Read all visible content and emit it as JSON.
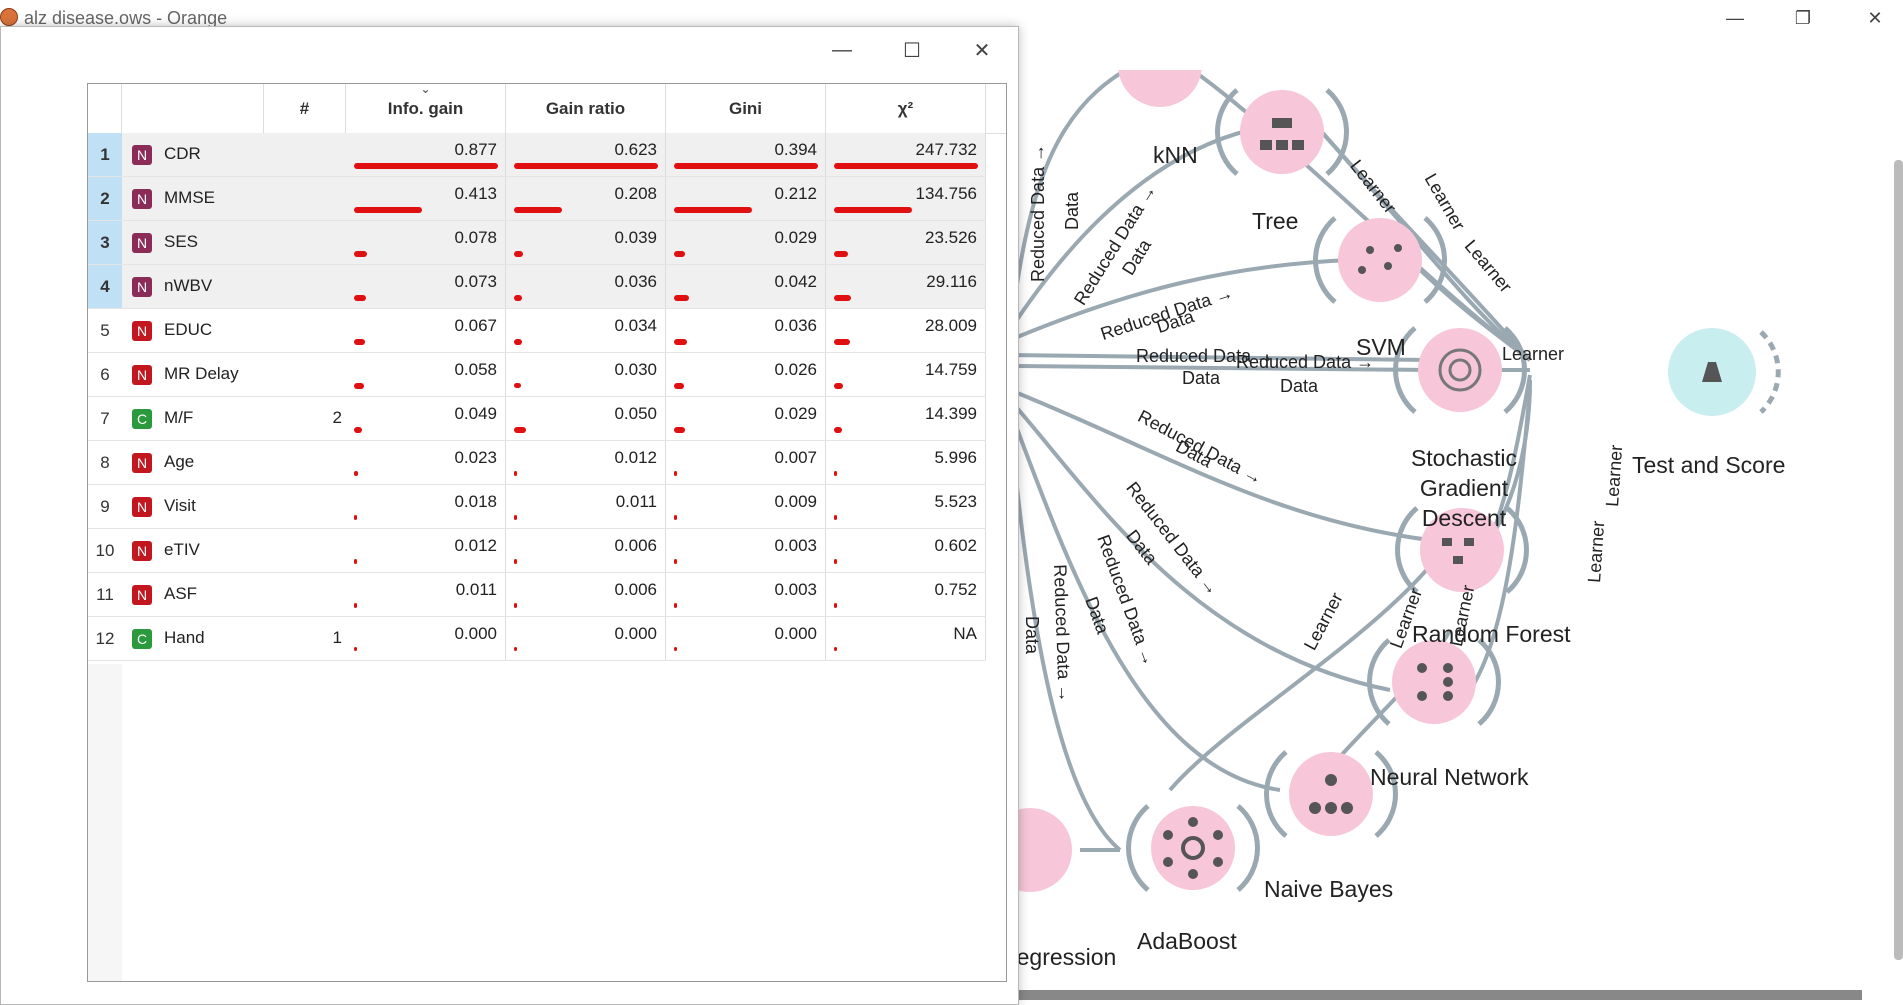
{
  "window": {
    "title": "alz disease.ows - Orange"
  },
  "table": {
    "columns": [
      {
        "label": "#"
      },
      {
        "label": "Info. gain"
      },
      {
        "label": "Gain ratio"
      },
      {
        "label": "Gini"
      },
      {
        "label": "χ²"
      }
    ],
    "rows": [
      {
        "index": "1",
        "type": "N",
        "name": "CDR",
        "count": "",
        "info_gain": "0.877",
        "gain_ratio": "0.623",
        "gini": "0.394",
        "chi2": "247.732",
        "selected": true,
        "bars": [
          1.0,
          1.0,
          1.0,
          1.0
        ]
      },
      {
        "index": "2",
        "type": "N",
        "name": "MMSE",
        "count": "",
        "info_gain": "0.413",
        "gain_ratio": "0.208",
        "gini": "0.212",
        "chi2": "134.756",
        "selected": true,
        "bars": [
          0.47,
          0.33,
          0.54,
          0.54
        ]
      },
      {
        "index": "3",
        "type": "N",
        "name": "SES",
        "count": "",
        "info_gain": "0.078",
        "gain_ratio": "0.039",
        "gini": "0.029",
        "chi2": "23.526",
        "selected": true,
        "bars": [
          0.089,
          0.063,
          0.074,
          0.095
        ]
      },
      {
        "index": "4",
        "type": "N",
        "name": "nWBV",
        "count": "",
        "info_gain": "0.073",
        "gain_ratio": "0.036",
        "gini": "0.042",
        "chi2": "29.116",
        "selected": true,
        "bars": [
          0.083,
          0.058,
          0.107,
          0.118
        ]
      },
      {
        "index": "5",
        "type": "N",
        "name": "EDUC",
        "count": "",
        "info_gain": "0.067",
        "gain_ratio": "0.034",
        "gini": "0.036",
        "chi2": "28.009",
        "selected": false,
        "bars": [
          0.076,
          0.055,
          0.091,
          0.113
        ]
      },
      {
        "index": "6",
        "type": "N",
        "name": "MR Delay",
        "count": "",
        "info_gain": "0.058",
        "gain_ratio": "0.030",
        "gini": "0.026",
        "chi2": "14.759",
        "selected": false,
        "bars": [
          0.066,
          0.048,
          0.066,
          0.06
        ]
      },
      {
        "index": "7",
        "type": "C",
        "name": "M/F",
        "count": "2",
        "info_gain": "0.049",
        "gain_ratio": "0.050",
        "gini": "0.029",
        "chi2": "14.399",
        "selected": false,
        "bars": [
          0.056,
          0.08,
          0.074,
          0.058
        ]
      },
      {
        "index": "8",
        "type": "N",
        "name": "Age",
        "count": "",
        "info_gain": "0.023",
        "gain_ratio": "0.012",
        "gini": "0.007",
        "chi2": "5.996",
        "selected": false,
        "bars": [
          0.026,
          0.019,
          0.018,
          0.024
        ]
      },
      {
        "index": "9",
        "type": "N",
        "name": "Visit",
        "count": "",
        "info_gain": "0.018",
        "gain_ratio": "0.011",
        "gini": "0.009",
        "chi2": "5.523",
        "selected": false,
        "bars": [
          0.021,
          0.018,
          0.023,
          0.022
        ]
      },
      {
        "index": "10",
        "type": "N",
        "name": "eTIV",
        "count": "",
        "info_gain": "0.012",
        "gain_ratio": "0.006",
        "gini": "0.003",
        "chi2": "0.602",
        "selected": false,
        "bars": [
          0.014,
          0.01,
          0.008,
          0.002
        ]
      },
      {
        "index": "11",
        "type": "N",
        "name": "ASF",
        "count": "",
        "info_gain": "0.011",
        "gain_ratio": "0.006",
        "gini": "0.003",
        "chi2": "0.752",
        "selected": false,
        "bars": [
          0.013,
          0.01,
          0.008,
          0.003
        ]
      },
      {
        "index": "12",
        "type": "C",
        "name": "Hand",
        "count": "1",
        "info_gain": "0.000",
        "gain_ratio": "0.000",
        "gini": "0.000",
        "chi2": "NA",
        "selected": false,
        "bars": [
          0,
          0,
          0,
          0
        ]
      }
    ]
  },
  "workflow": {
    "nodes": [
      {
        "id": "knn",
        "label": "kNN",
        "icon": "knn-icon"
      },
      {
        "id": "tree",
        "label": "Tree",
        "icon": "tree-icon"
      },
      {
        "id": "svm",
        "label": "SVM",
        "icon": "svm-icon"
      },
      {
        "id": "sgd",
        "label": "Stochastic Gradient Descent",
        "icon": "sgd-icon"
      },
      {
        "id": "rf",
        "label": "Random Forest",
        "icon": "random-forest-icon"
      },
      {
        "id": "nn",
        "label": "Neural Network",
        "icon": "neural-network-icon"
      },
      {
        "id": "nb",
        "label": "Naive Bayes",
        "icon": "naive-bayes-icon"
      },
      {
        "id": "ada",
        "label": "AdaBoost",
        "icon": "adaboost-icon"
      },
      {
        "id": "lr",
        "label": "Regression",
        "icon": "logistic-regression-icon"
      },
      {
        "id": "ts",
        "label": "Test and Score",
        "icon": "test-and-score-icon"
      }
    ],
    "edge_labels": {
      "reduced_arrow": "Reduced Data →",
      "data": "Data",
      "learner": "Learner"
    },
    "colors": {
      "learner_node": "#f7c6d9",
      "evaluate_node": "#c9eef0",
      "link": "#9aa8b2"
    }
  }
}
